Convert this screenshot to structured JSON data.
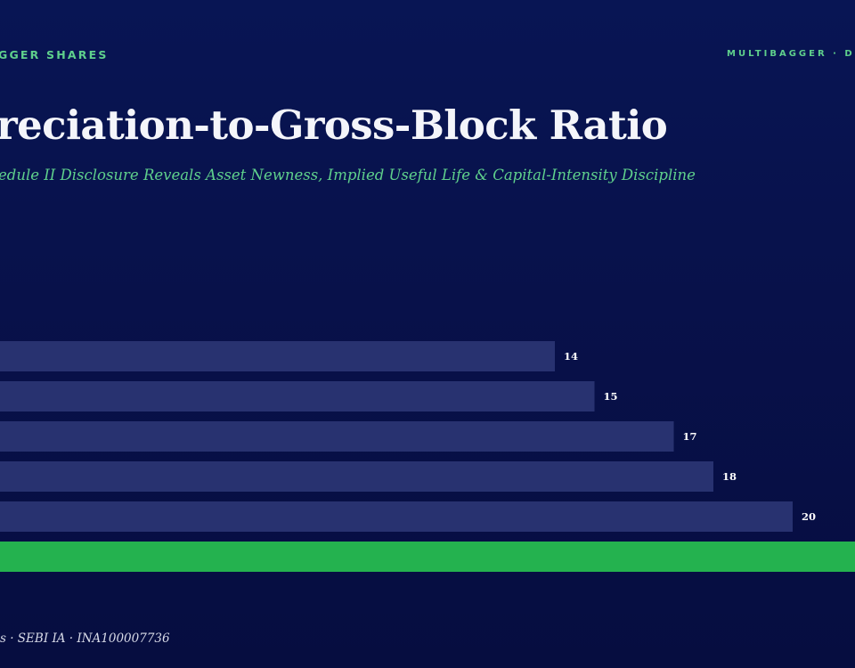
{
  "header": {
    "brand_left": "GGER SHARES",
    "brand_right": "MULTIBAGGER · D"
  },
  "title": "reciation-to-Gross-Block Ratio",
  "subtitle": "edule II Disclosure Reveals Asset Newness, Implied Useful Life & Capital-Intensity Discipline",
  "footer": "es · SEBI IA · INA100007736",
  "colors": {
    "background": "#081554",
    "bar": "#283270",
    "highlight_bar": "#24b24f",
    "accent_text": "#5fd08c"
  },
  "chart_data": {
    "type": "bar",
    "orientation": "horizontal",
    "categories": [
      "",
      "",
      "",
      "",
      "",
      ""
    ],
    "values": [
      14,
      15,
      17,
      18,
      20,
      21.6
    ],
    "data_labels": [
      "14",
      "15",
      "17",
      "18",
      "20",
      ""
    ],
    "highlight_index": 5,
    "title": "reciation-to-Gross-Block Ratio",
    "subtitle": "edule II Disclosure Reveals Asset Newness, Implied Useful Life & Capital-Intensity Discipline",
    "xlabel": "",
    "ylabel": "",
    "grid": false,
    "legend": "none"
  }
}
